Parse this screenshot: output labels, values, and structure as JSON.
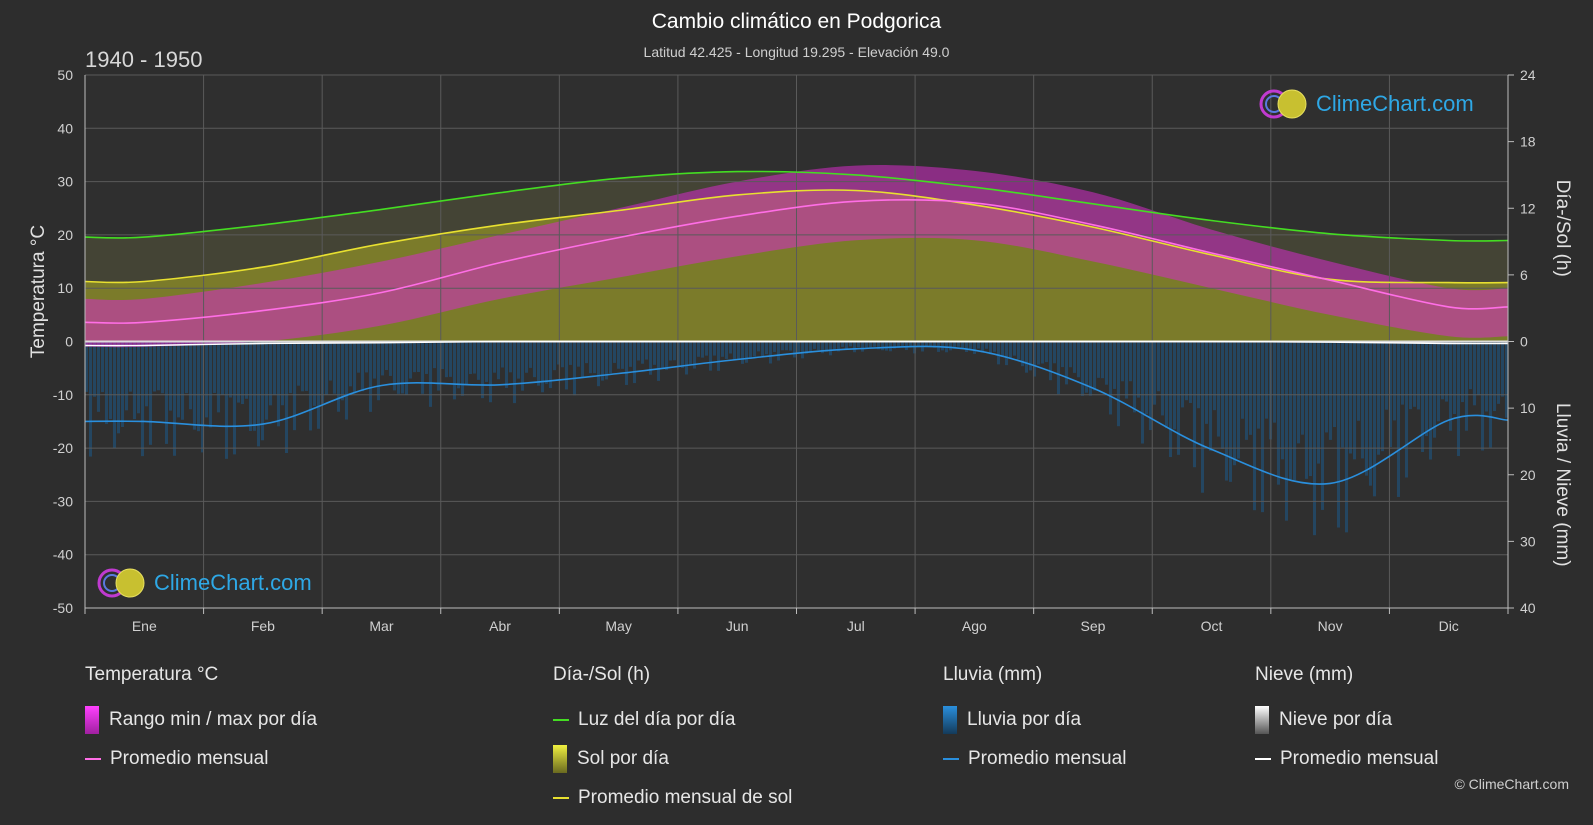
{
  "title": "Cambio climático en Podgorica",
  "subtitle": "Latitud 42.425 - Longitud 19.295 - Elevación 49.0",
  "period": "1940 - 1950",
  "copyright": "© ClimeChart.com",
  "logo_text": "ClimeChart.com",
  "colors": {
    "background": "#2d2d2d",
    "daylight": "#44dd22",
    "sunshine_line": "#e8e030",
    "sunshine_fill": "#8a8a28",
    "temp_line": "#ff6ee6",
    "temp_range": "#d62cc8",
    "rain_line": "#2a8fdd",
    "rain_fill": "#1c5a8a",
    "snow_line": "#ffffff"
  },
  "chart_data": {
    "type": "line",
    "months": [
      "Ene",
      "Feb",
      "Mar",
      "Abr",
      "May",
      "Jun",
      "Jul",
      "Ago",
      "Sep",
      "Oct",
      "Nov",
      "Dic"
    ],
    "left_axis": {
      "label": "Temperatura °C",
      "range": [
        -50,
        50
      ],
      "ticks": [
        50,
        40,
        30,
        20,
        10,
        0,
        -10,
        -20,
        -30,
        -40,
        -50
      ]
    },
    "right_axis_top": {
      "label": "Día-/Sol (h)",
      "range": [
        0,
        24
      ],
      "ticks": [
        24,
        18,
        12,
        6,
        0
      ]
    },
    "right_axis_bottom": {
      "label": "Lluvia / Nieve (mm)",
      "range": [
        0,
        40
      ],
      "ticks": [
        0,
        10,
        20,
        30,
        40
      ]
    },
    "series": [
      {
        "name": "Luz del día por día",
        "unit": "h",
        "values": [
          9.4,
          10.5,
          11.9,
          13.4,
          14.7,
          15.3,
          15.0,
          13.9,
          12.4,
          10.9,
          9.7,
          9.1
        ]
      },
      {
        "name": "Promedio mensual de sol",
        "unit": "h",
        "values": [
          5.4,
          6.7,
          8.8,
          10.5,
          11.8,
          13.2,
          13.6,
          12.3,
          10.3,
          7.8,
          5.6,
          5.3
        ]
      },
      {
        "name": "Promedio mensual",
        "kind": "temperature",
        "unit": "°C",
        "values": [
          3.6,
          5.8,
          9.2,
          14.8,
          19.5,
          23.5,
          26.3,
          26.0,
          21.9,
          16.6,
          11.5,
          6.5
        ]
      },
      {
        "name": "Promedio mensual",
        "kind": "rain",
        "unit": "mm",
        "values": [
          12.0,
          12.4,
          6.6,
          6.5,
          4.8,
          2.7,
          1.1,
          1.3,
          7.0,
          16.2,
          21.3,
          11.8
        ]
      },
      {
        "name": "Promedio mensual",
        "kind": "snow",
        "unit": "mm",
        "values": [
          0.6,
          0.3,
          0.2,
          0.0,
          0.0,
          0.0,
          0.0,
          0.0,
          0.0,
          0.0,
          0.1,
          0.3
        ]
      }
    ],
    "temp_range": {
      "min": [
        -1,
        0,
        3,
        8,
        12,
        16,
        19,
        19,
        15,
        10,
        5,
        1
      ],
      "max": [
        8,
        11,
        15,
        20,
        25,
        30,
        33,
        32,
        28,
        21,
        15,
        10
      ]
    }
  },
  "legend": [
    {
      "heading": "Temperatura °C",
      "items": [
        {
          "label": "Rango min / max por día",
          "kind": "temp-range"
        },
        {
          "label": "Promedio mensual",
          "kind": "temp-line"
        }
      ]
    },
    {
      "heading": "Día-/Sol (h)",
      "items": [
        {
          "label": "Luz del día por día",
          "kind": "daylight-line"
        },
        {
          "label": "Sol por día",
          "kind": "sun-box"
        },
        {
          "label": "Promedio mensual de sol",
          "kind": "sun-line"
        }
      ]
    },
    {
      "heading": "Lluvia (mm)",
      "items": [
        {
          "label": "Lluvia por día",
          "kind": "rain-box"
        },
        {
          "label": "Promedio mensual",
          "kind": "rain-line"
        }
      ]
    },
    {
      "heading": "Nieve (mm)",
      "items": [
        {
          "label": "Nieve por día",
          "kind": "snow-box"
        },
        {
          "label": "Promedio mensual",
          "kind": "snow-line"
        }
      ]
    }
  ]
}
